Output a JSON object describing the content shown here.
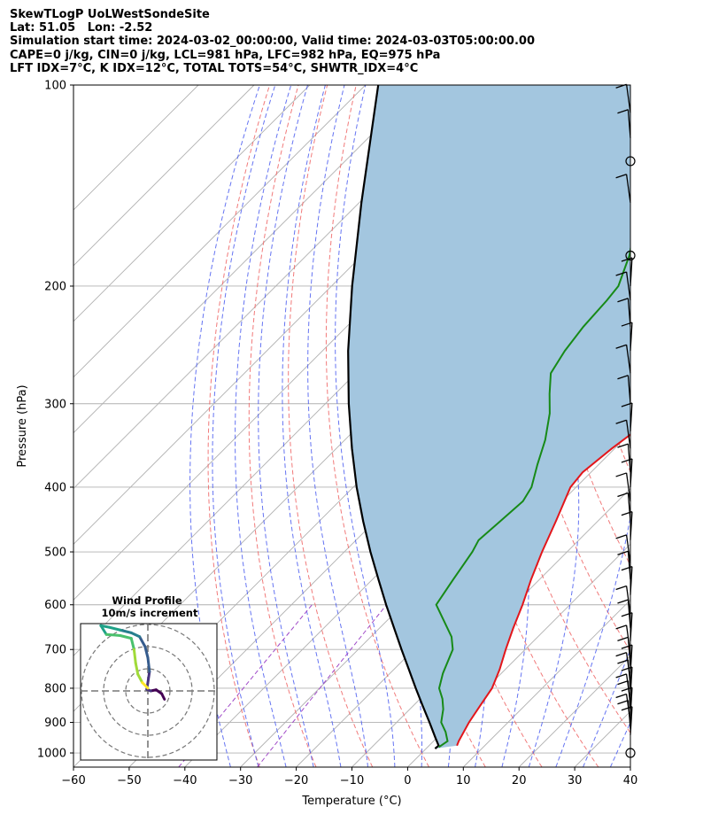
{
  "header": {
    "title": "SkewTLogP UoLWestSondeSite",
    "location": "Lat: 51.05   Lon: -2.52",
    "times": "Simulation start time: 2024-03-02_00:00:00, Valid time: 2024-03-03T05:00:00.00",
    "indices_1": "CAPE=0 j/kg, CIN=0 j/kg, LCL=981 hPa, LFC=982 hPa, EQ=975 hPa",
    "indices_2": "LFT IDX=7°C, K IDX=12°C, TOTAL TOTS=54°C, SHWTR_IDX=4°C"
  },
  "chart_data": [
    {
      "type": "line",
      "subtype": "skew-t log-p",
      "xlabel": "Temperature (°C)",
      "ylabel": "Pressure (hPa)",
      "xlim": [
        -60,
        40
      ],
      "ylim": [
        1050,
        100
      ],
      "y_scale": "log",
      "x_ticks": [
        "−60",
        "−50",
        "−40",
        "−30",
        "−20",
        "−10",
        "0",
        "10",
        "20",
        "30",
        "40"
      ],
      "x_tick_values": [
        -60,
        -50,
        -40,
        -30,
        -20,
        -10,
        0,
        10,
        20,
        30,
        40
      ],
      "y_ticks": [
        "100",
        "200",
        "300",
        "400",
        "500",
        "600",
        "700",
        "800",
        "900",
        "1000"
      ],
      "y_tick_values": [
        100,
        200,
        300,
        400,
        500,
        600,
        700,
        800,
        900,
        1000
      ],
      "grid": true,
      "colors": {
        "temperature": "#e3161b",
        "dewpoint": "#178a17",
        "parcel": "#000000",
        "shading": "#a3c6df",
        "dry_adiabats": "#f06b6b",
        "moist_adiabats": "#4a5cf0",
        "mixing_ratio": "#a04ac8",
        "isotherms": "#b0b0b0"
      },
      "series": [
        {
          "role": "temperature",
          "points": [
            [
              975,
              5.0
            ],
            [
              960,
              4.5
            ],
            [
              900,
              3.0
            ],
            [
              850,
              2.0
            ],
            [
              800,
              1.0
            ],
            [
              750,
              -1.0
            ],
            [
              700,
              -3.5
            ],
            [
              650,
              -6.0
            ],
            [
              600,
              -8.5
            ],
            [
              550,
              -11.5
            ],
            [
              500,
              -14.5
            ],
            [
              450,
              -17.5
            ],
            [
              400,
              -21.0
            ],
            [
              380,
              -21.5
            ],
            [
              350,
              -20.5
            ],
            [
              330,
              -19.5
            ],
            [
              310,
              -17.0
            ],
            [
              290,
              -15.0
            ],
            [
              270,
              -14.0
            ],
            [
              250,
              -13.0
            ],
            [
              230,
              -12.0
            ],
            [
              200,
              -10.0
            ],
            [
              180,
              -10.0
            ],
            [
              160,
              -10.0
            ],
            [
              150,
              -10.0
            ],
            [
              140,
              -11.0
            ],
            [
              130,
              -12.0
            ],
            [
              120,
              -13.5
            ],
            [
              110,
              -15.0
            ],
            [
              100,
              -17.0
            ]
          ]
        },
        {
          "role": "dewpoint",
          "points": [
            [
              980,
              2.0
            ],
            [
              960,
              2.5
            ],
            [
              930,
              0.5
            ],
            [
              900,
              -2.0
            ],
            [
              860,
              -4.0
            ],
            [
              830,
              -6.0
            ],
            [
              800,
              -8.5
            ],
            [
              760,
              -10.5
            ],
            [
              700,
              -13.0
            ],
            [
              670,
              -15.5
            ],
            [
              600,
              -24.0
            ],
            [
              550,
              -25.5
            ],
            [
              500,
              -27.0
            ],
            [
              480,
              -28.0
            ],
            [
              450,
              -27.5
            ],
            [
              420,
              -27.0
            ],
            [
              400,
              -28.0
            ],
            [
              370,
              -31.0
            ],
            [
              340,
              -34.0
            ],
            [
              310,
              -38.0
            ],
            [
              290,
              -41.5
            ],
            [
              270,
              -45.0
            ],
            [
              250,
              -46.5
            ],
            [
              230,
              -47.5
            ],
            [
              210,
              -48.0
            ],
            [
              200,
              -48.5
            ],
            [
              180,
              -52.0
            ],
            [
              160,
              -57.0
            ],
            [
              140,
              -63.5
            ],
            [
              120,
              -71.0
            ],
            [
              100,
              -79.5
            ]
          ]
        },
        {
          "role": "parcel",
          "points": [
            [
              985,
              1.6
            ],
            [
              975,
              1.7
            ],
            [
              950,
              -0.2
            ],
            [
              900,
              -4.1
            ],
            [
              850,
              -8.3
            ],
            [
              800,
              -12.7
            ],
            [
              750,
              -17.3
            ],
            [
              700,
              -22.2
            ],
            [
              650,
              -27.4
            ],
            [
              600,
              -33.0
            ],
            [
              550,
              -38.9
            ],
            [
              500,
              -45.3
            ],
            [
              450,
              -52.1
            ],
            [
              400,
              -59.4
            ],
            [
              350,
              -67.2
            ],
            [
              300,
              -75.8
            ],
            [
              250,
              -85.4
            ],
            [
              200,
              -96.3
            ],
            [
              150,
              -109.6
            ],
            [
              100,
              -127.7
            ]
          ]
        }
      ],
      "wind_barbs": {
        "pressures": [
          1000,
          940,
          920,
          900,
          880,
          860,
          840,
          820,
          800,
          780,
          760,
          740,
          710,
          680,
          650,
          620,
          580,
          550,
          520,
          480,
          450,
          420,
          400,
          380,
          350,
          330,
          300,
          270,
          250,
          230,
          210,
          200,
          180,
          150,
          130,
          120,
          110
        ],
        "calm_pressures": [
          1000,
          180,
          130,
          115
        ]
      }
    },
    {
      "type": "scatter",
      "subtype": "hodograph",
      "title": "Wind Profile",
      "subtitle": "10m/s increment",
      "rings": 3,
      "points": [
        [
          3.0,
          -1.5
        ],
        [
          2.5,
          -0.5
        ],
        [
          1.5,
          0.2
        ],
        [
          0.5,
          0.0
        ],
        [
          -0.2,
          0.3
        ],
        [
          0.0,
          1.5
        ],
        [
          0.3,
          3.5
        ],
        [
          0.0,
          6.0
        ],
        [
          -0.5,
          8.0
        ],
        [
          -1.5,
          9.8
        ],
        [
          -3.0,
          10.5
        ],
        [
          -5.0,
          11.0
        ],
        [
          -7.0,
          11.5
        ],
        [
          -8.5,
          11.8
        ],
        [
          -7.5,
          10.2
        ],
        [
          -5.0,
          10.0
        ],
        [
          -3.0,
          9.5
        ],
        [
          -2.5,
          7.5
        ],
        [
          -2.2,
          5.0
        ],
        [
          -1.8,
          3.0
        ],
        [
          -1.0,
          1.5
        ],
        [
          0.0,
          0.5
        ]
      ]
    }
  ]
}
